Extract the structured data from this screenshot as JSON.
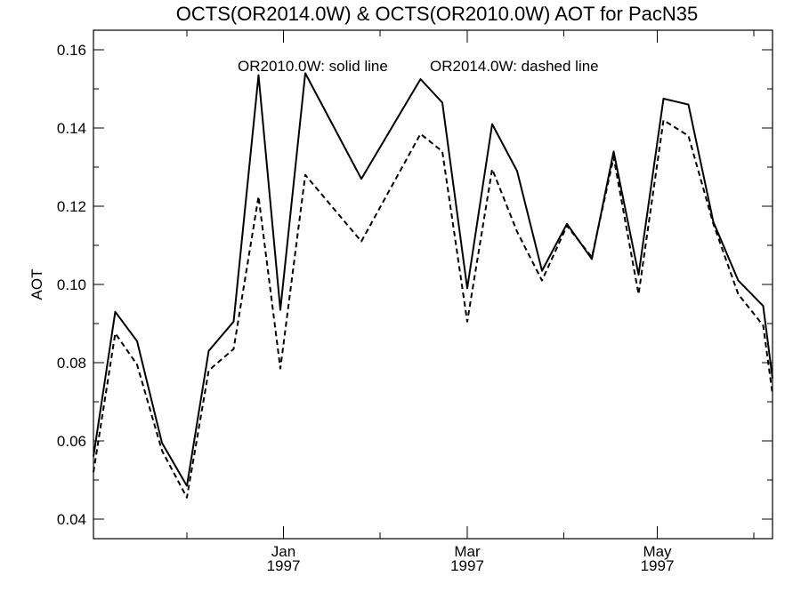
{
  "chart_data": {
    "type": "line",
    "title": "OCTS(OR2014.0W) & OCTS(OR2010.0W)  AOT for PacN35",
    "xlabel": "",
    "ylabel": "AOT",
    "annotations": [
      "OR2010.0W: solid line",
      "OR2014.0W: dashed line"
    ],
    "x_range": [
      "1996-11-01",
      "1997-06-07"
    ],
    "ylim": [
      0.035,
      0.165
    ],
    "y_ticks": [
      "0.04",
      "0.06",
      "0.08",
      "0.10",
      "0.12",
      "0.14",
      "0.16"
    ],
    "x_major_ticks": [
      {
        "date": "1997-01-01",
        "month": "Jan",
        "year": "1997"
      },
      {
        "date": "1997-03-01",
        "month": "Mar",
        "year": "1997"
      },
      {
        "date": "1997-05-01",
        "month": "May",
        "year": "1997"
      }
    ],
    "x_minor_ticks": [
      "1996-12-01",
      "1997-02-01",
      "1997-04-01",
      "1997-06-01"
    ],
    "grid": false,
    "x": [
      "1996-11-01",
      "1996-11-08",
      "1996-11-15",
      "1996-11-23",
      "1996-12-01",
      "1996-12-08",
      "1996-12-16",
      "1996-12-24",
      "1996-12-31",
      "1997-01-08",
      "1997-01-26",
      "1997-02-14",
      "1997-02-21",
      "1997-03-01",
      "1997-03-09",
      "1997-03-17",
      "1997-03-25",
      "1997-04-02",
      "1997-04-10",
      "1997-04-17",
      "1997-04-25",
      "1997-05-03",
      "1997-05-11",
      "1997-05-19",
      "1997-05-27",
      "1997-06-04",
      "1997-06-07"
    ],
    "series": [
      {
        "name": "OR2010.0W",
        "style": "solid",
        "color": "#000000",
        "values": [
          0.056,
          0.093,
          0.0855,
          0.0595,
          0.0485,
          0.083,
          0.0905,
          0.1535,
          0.0935,
          0.154,
          0.127,
          0.1525,
          0.1465,
          0.099,
          0.141,
          0.129,
          0.1035,
          0.1155,
          0.1065,
          0.134,
          0.1025,
          0.1475,
          0.146,
          0.116,
          0.101,
          0.0945,
          0.076
        ]
      },
      {
        "name": "OR2014.0W",
        "style": "dashed",
        "color": "#000000",
        "values": [
          0.052,
          0.0875,
          0.0795,
          0.0575,
          0.0455,
          0.078,
          0.0835,
          0.1225,
          0.0785,
          0.128,
          0.111,
          0.1385,
          0.134,
          0.0905,
          0.1295,
          0.1135,
          0.101,
          0.115,
          0.107,
          0.1325,
          0.0975,
          0.142,
          0.138,
          0.1155,
          0.0975,
          0.0895,
          0.072
        ]
      }
    ]
  }
}
